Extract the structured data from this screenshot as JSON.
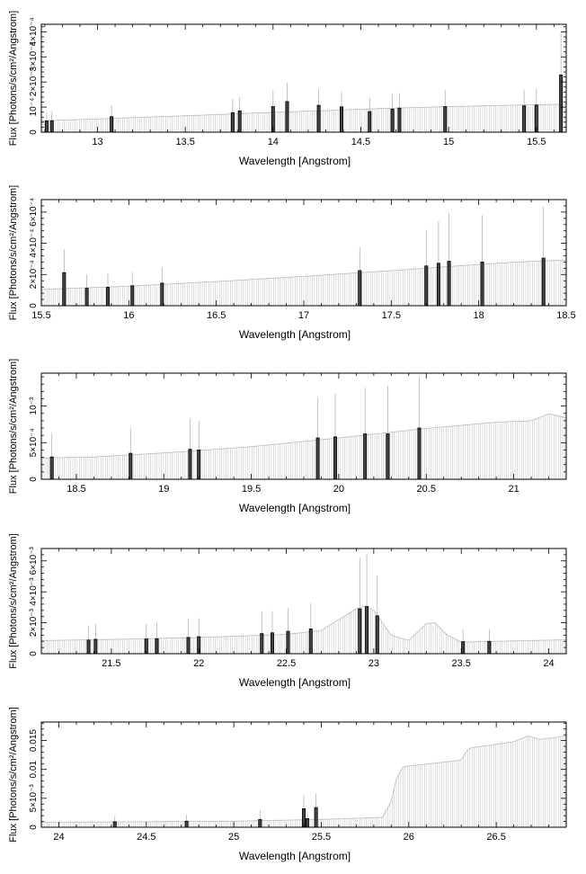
{
  "chart_data": [
    {
      "type": "line",
      "xlabel": "Wavelength [Angstrom]",
      "ylabel": "Flux [Photons/s/cm²/Angstrom]",
      "xlim": [
        12.68,
        15.67
      ],
      "ylim": [
        0,
        0.00043
      ],
      "x_ticks": [
        "13",
        "13.5",
        "14",
        "14.5",
        "15",
        "15.5"
      ],
      "y_ticks": [
        "0",
        "10⁻⁴",
        "2×10⁻⁴",
        "3×10⁻⁴",
        "4×10⁻⁴"
      ],
      "y_tick_values": [
        0,
        0.0001,
        0.0002,
        0.0003,
        0.0004
      ],
      "continuum": [
        [
          12.68,
          4.5e-05
        ],
        [
          13.2,
          5.8e-05
        ],
        [
          13.6,
          6.8e-05
        ],
        [
          14.0,
          7.9e-05
        ],
        [
          14.3,
          8.6e-05
        ],
        [
          14.6,
          9.4e-05
        ],
        [
          15.0,
          0.000102
        ],
        [
          15.4,
          0.000108
        ],
        [
          15.67,
          0.000112
        ]
      ],
      "lines": [
        {
          "x": 12.71,
          "y": 4.5e-05,
          "err": 3.5e-05
        },
        {
          "x": 12.74,
          "y": 4.6e-05,
          "err": 3.5e-05
        },
        {
          "x": 13.08,
          "y": 6.2e-05,
          "err": 4.5e-05
        },
        {
          "x": 13.77,
          "y": 7.8e-05,
          "err": 5.5e-05
        },
        {
          "x": 13.81,
          "y": 8.5e-05,
          "err": 5.5e-05
        },
        {
          "x": 14.0,
          "y": 0.000102,
          "err": 6.5e-05
        },
        {
          "x": 14.08,
          "y": 0.000122,
          "err": 7.5e-05
        },
        {
          "x": 14.26,
          "y": 0.000107,
          "err": 6.5e-05
        },
        {
          "x": 14.39,
          "y": 0.000101,
          "err": 6e-05
        },
        {
          "x": 14.55,
          "y": 8.2e-05,
          "err": 5.5e-05
        },
        {
          "x": 14.68,
          "y": 9.2e-05,
          "err": 6e-05
        },
        {
          "x": 14.72,
          "y": 9.6e-05,
          "err": 6e-05
        },
        {
          "x": 14.98,
          "y": 0.000102,
          "err": 6.5e-05
        },
        {
          "x": 15.43,
          "y": 0.000105,
          "err": 6.5e-05
        },
        {
          "x": 15.5,
          "y": 0.000108,
          "err": 6.5e-05
        },
        {
          "x": 15.64,
          "y": 0.000228,
          "err": 0.00017
        }
      ]
    },
    {
      "type": "line",
      "xlabel": "Wavelength [Angstrom]",
      "ylabel": "Flux [Photons/s/cm²/Angstrom]",
      "xlim": [
        15.5,
        18.5
      ],
      "ylim": [
        0,
        0.00068
      ],
      "x_ticks": [
        "15.5",
        "16",
        "16.5",
        "17",
        "17.5",
        "18",
        "18.5"
      ],
      "y_ticks": [
        "0",
        "2×10⁻⁴",
        "4×10⁻⁴",
        "6×10⁻⁴"
      ],
      "y_tick_values": [
        0,
        0.0002,
        0.0004,
        0.0006
      ],
      "continuum": [
        [
          15.5,
          0.000105
        ],
        [
          16.0,
          0.000125
        ],
        [
          16.5,
          0.000155
        ],
        [
          17.0,
          0.000188
        ],
        [
          17.5,
          0.000225
        ],
        [
          18.0,
          0.000265
        ],
        [
          18.3,
          0.000285
        ],
        [
          18.5,
          0.000292
        ]
      ],
      "lines": [
        {
          "x": 15.63,
          "y": 0.000212,
          "err": 0.00015
        },
        {
          "x": 15.76,
          "y": 0.000112,
          "err": 9e-05
        },
        {
          "x": 15.88,
          "y": 0.000118,
          "err": 9e-05
        },
        {
          "x": 16.02,
          "y": 0.000128,
          "err": 9e-05
        },
        {
          "x": 16.19,
          "y": 0.000145,
          "err": 0.0001
        },
        {
          "x": 17.32,
          "y": 0.000225,
          "err": 0.00015
        },
        {
          "x": 17.7,
          "y": 0.000255,
          "err": 0.00023
        },
        {
          "x": 17.77,
          "y": 0.000272,
          "err": 0.00027
        },
        {
          "x": 17.83,
          "y": 0.000285,
          "err": 0.00031
        },
        {
          "x": 18.02,
          "y": 0.00028,
          "err": 0.0003
        },
        {
          "x": 18.37,
          "y": 0.000305,
          "err": 0.00033
        }
      ]
    },
    {
      "type": "line",
      "xlabel": "Wavelength [Angstrom]",
      "ylabel": "Flux [Photons/s/cm²/Angstrom]",
      "xlim": [
        18.3,
        21.3
      ],
      "ylim": [
        0,
        0.00145
      ],
      "x_ticks": [
        "18.5",
        "19",
        "19.5",
        "20",
        "20.5",
        "21"
      ],
      "y_ticks": [
        "0",
        "5×10⁻⁴",
        "10⁻³"
      ],
      "y_tick_values": [
        0,
        0.0005,
        0.001
      ],
      "continuum": [
        [
          18.3,
          0.00029
        ],
        [
          18.6,
          0.000305
        ],
        [
          19.0,
          0.00036
        ],
        [
          19.5,
          0.000445
        ],
        [
          20.0,
          0.000565
        ],
        [
          20.5,
          0.000695
        ],
        [
          20.9,
          0.00078
        ],
        [
          21.1,
          0.0008
        ],
        [
          21.2,
          0.000895
        ],
        [
          21.3,
          0.00084
        ]
      ],
      "lines": [
        {
          "x": 18.36,
          "y": 0.000305,
          "err": 0.00032
        },
        {
          "x": 18.81,
          "y": 0.000355,
          "err": 0.00035
        },
        {
          "x": 19.15,
          "y": 0.00041,
          "err": 0.00042
        },
        {
          "x": 19.2,
          "y": 0.0004,
          "err": 0.0004
        },
        {
          "x": 19.88,
          "y": 0.000565,
          "err": 0.00055
        },
        {
          "x": 19.98,
          "y": 0.00058,
          "err": 0.00059
        },
        {
          "x": 20.15,
          "y": 0.00062,
          "err": 0.00063
        },
        {
          "x": 20.28,
          "y": 0.00062,
          "err": 0.00066
        },
        {
          "x": 20.46,
          "y": 0.0007,
          "err": 0.0007
        }
      ]
    },
    {
      "type": "line",
      "xlabel": "Wavelength [Angstrom]",
      "ylabel": "Flux [Photons/s/cm²/Angstrom]",
      "xlim": [
        21.1,
        24.1
      ],
      "ylim": [
        0,
        0.0068
      ],
      "x_ticks": [
        "21.5",
        "22",
        "22.5",
        "23",
        "23.5",
        "24"
      ],
      "y_ticks": [
        "0",
        "2×10⁻³",
        "4×10⁻³",
        "6×10⁻³"
      ],
      "y_tick_values": [
        0,
        0.002,
        0.004,
        0.006
      ],
      "continuum": [
        [
          21.1,
          0.00085
        ],
        [
          21.5,
          0.00092
        ],
        [
          22.0,
          0.00105
        ],
        [
          22.5,
          0.00125
        ],
        [
          22.7,
          0.0015
        ],
        [
          22.8,
          0.0022
        ],
        [
          22.9,
          0.0029
        ],
        [
          22.95,
          0.0031
        ],
        [
          23.0,
          0.0028
        ],
        [
          23.1,
          0.0012
        ],
        [
          23.2,
          0.00085
        ],
        [
          23.3,
          0.00195
        ],
        [
          23.35,
          0.002
        ],
        [
          23.42,
          0.0012
        ],
        [
          23.5,
          0.00075
        ],
        [
          24.1,
          0.0009
        ]
      ],
      "lines": [
        {
          "x": 21.37,
          "y": 0.00088,
          "err": 0.00095
        },
        {
          "x": 21.41,
          "y": 0.00093,
          "err": 0.001
        },
        {
          "x": 21.7,
          "y": 0.00095,
          "err": 0.001
        },
        {
          "x": 21.76,
          "y": 0.00097,
          "err": 0.0011
        },
        {
          "x": 21.94,
          "y": 0.00105,
          "err": 0.0012
        },
        {
          "x": 22.0,
          "y": 0.0011,
          "err": 0.0012
        },
        {
          "x": 22.36,
          "y": 0.0013,
          "err": 0.0014
        },
        {
          "x": 22.42,
          "y": 0.00135,
          "err": 0.0014
        },
        {
          "x": 22.51,
          "y": 0.00145,
          "err": 0.0015
        },
        {
          "x": 22.64,
          "y": 0.0016,
          "err": 0.0017
        },
        {
          "x": 22.92,
          "y": 0.0029,
          "err": 0.0033
        },
        {
          "x": 22.96,
          "y": 0.00305,
          "err": 0.0034
        },
        {
          "x": 23.02,
          "y": 0.00245,
          "err": 0.0026
        },
        {
          "x": 23.51,
          "y": 0.00078,
          "err": 0.0008
        },
        {
          "x": 23.66,
          "y": 0.0008,
          "err": 0.0008
        }
      ]
    },
    {
      "type": "line",
      "xlabel": "Wavelength [Angstrom]",
      "ylabel": "Flux [Photons/s/cm²/Angstrom]",
      "xlim": [
        23.9,
        26.9
      ],
      "ylim": [
        0,
        0.0182
      ],
      "x_ticks": [
        "24",
        "24.5",
        "25",
        "25.5",
        "26",
        "26.5"
      ],
      "y_ticks": [
        "0",
        "5×10⁻³",
        "0.01",
        "0.015"
      ],
      "y_tick_values": [
        0,
        0.005,
        0.01,
        0.015
      ],
      "continuum": [
        [
          23.9,
          0.00085
        ],
        [
          24.5,
          0.00095
        ],
        [
          25.0,
          0.00105
        ],
        [
          25.5,
          0.00135
        ],
        [
          25.85,
          0.0017
        ],
        [
          25.9,
          0.0045
        ],
        [
          25.93,
          0.0085
        ],
        [
          25.97,
          0.0105
        ],
        [
          26.3,
          0.0116
        ],
        [
          26.33,
          0.0132
        ],
        [
          26.35,
          0.0137
        ],
        [
          26.6,
          0.0148
        ],
        [
          26.68,
          0.0158
        ],
        [
          26.75,
          0.0152
        ],
        [
          26.9,
          0.0158
        ]
      ],
      "lines": [
        {
          "x": 24.32,
          "y": 0.00095,
          "err": 0.001
        },
        {
          "x": 24.73,
          "y": 0.00105,
          "err": 0.0011
        },
        {
          "x": 25.15,
          "y": 0.00135,
          "err": 0.0016
        },
        {
          "x": 25.4,
          "y": 0.0032,
          "err": 0.0023
        },
        {
          "x": 25.42,
          "y": 0.0015,
          "err": 0.0012
        },
        {
          "x": 25.47,
          "y": 0.0034,
          "err": 0.0024
        }
      ]
    }
  ]
}
